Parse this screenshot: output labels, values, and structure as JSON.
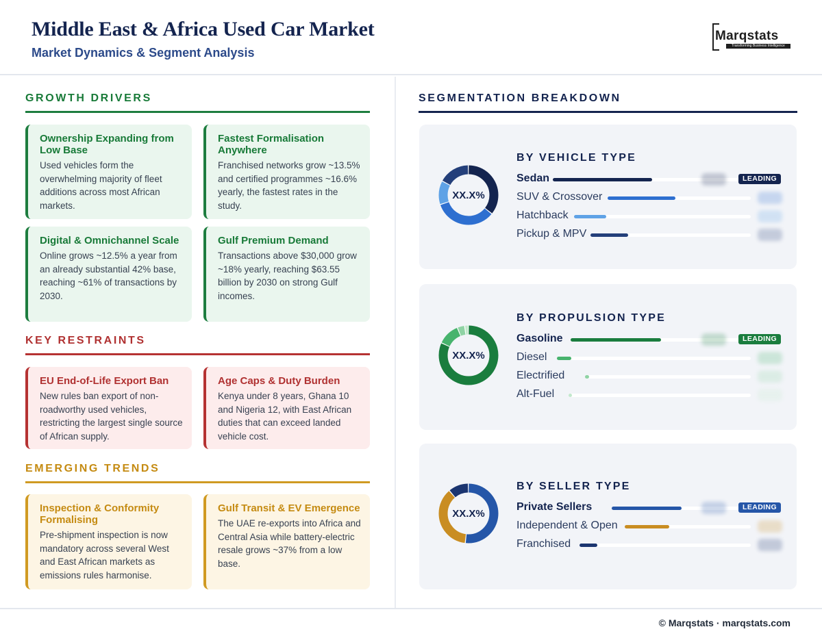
{
  "header": {
    "title": "Middle East & Africa Used Car Market",
    "subtitle": "Market Dynamics & Segment Analysis",
    "logo_text": "Marqstats",
    "logo_tagline": "Transforming Business Intelligence"
  },
  "drivers": {
    "heading": "GROWTH DRIVERS",
    "cards": [
      {
        "title": "Ownership Expanding from Low Base",
        "body": "Used vehicles form the overwhelming majority of fleet additions across most African markets."
      },
      {
        "title": "Fastest Formalisation Anywhere",
        "body": "Franchised networks grow ~13.5% and certified programmes ~16.6% yearly, the fastest rates in the study."
      },
      {
        "title": "Digital & Omnichannel Scale",
        "body": "Online grows ~12.5% a year from an already substantial 42% base, reaching ~61% of transactions by 2030."
      },
      {
        "title": "Gulf Premium Demand",
        "body": "Transactions above $30,000 grow ~18% yearly, reaching $63.55 billion by 2030 on strong Gulf incomes."
      }
    ]
  },
  "restraints": {
    "heading": "KEY RESTRAINTS",
    "cards": [
      {
        "title": "EU End-of-Life Export Ban",
        "body": "New rules ban export of non-roadworthy used vehicles, restricting the largest single source of African supply."
      },
      {
        "title": "Age Caps & Duty Burden",
        "body": "Kenya under 8 years, Ghana 10 and Nigeria 12, with East African duties that can exceed landed vehicle cost."
      }
    ]
  },
  "trends": {
    "heading": "EMERGING TRENDS",
    "cards": [
      {
        "title": "Inspection & Conformity Formalising",
        "body": "Pre-shipment inspection is now mandatory across several West and East African markets as emissions rules harmonise."
      },
      {
        "title": "Gulf Transit & EV Emergence",
        "body": "The UAE re-exports into Africa and Central Asia while battery-electric resale grows ~37% from a low base."
      }
    ]
  },
  "segmentation": {
    "heading": "SEGMENTATION BREAKDOWN",
    "leading_label": "LEADING",
    "panels": [
      {
        "title": "BY VEHICLE TYPE",
        "donut_label": "XX.X%",
        "rows": [
          {
            "name": "Sedan",
            "share": 0.36,
            "color": "#14244f",
            "leading": true
          },
          {
            "name": "SUV & Crossover",
            "share": 0.34,
            "color": "#2e6fd0",
            "leading": false
          },
          {
            "name": "Hatchback",
            "share": 0.13,
            "color": "#5fa2e6",
            "leading": false
          },
          {
            "name": "Pickup & MPV",
            "share": 0.17,
            "color": "#243f7a",
            "leading": false
          }
        ]
      },
      {
        "title": "BY PROPULSION TYPE",
        "donut_label": "XX.X%",
        "rows": [
          {
            "name": "Gasoline",
            "share": 0.82,
            "color": "#1a7d3e",
            "leading": true
          },
          {
            "name": "Diesel",
            "share": 0.12,
            "color": "#47b36d",
            "leading": false
          },
          {
            "name": "Electrified",
            "share": 0.04,
            "color": "#8fd3a4",
            "leading": false
          },
          {
            "name": "Alt-Fuel",
            "share": 0.02,
            "color": "#c2e8cc",
            "leading": false
          }
        ]
      },
      {
        "title": "BY SELLER TYPE",
        "donut_label": "XX.X%",
        "rows": [
          {
            "name": "Private Sellers",
            "share": 0.52,
            "color": "#2556a8",
            "leading": true
          },
          {
            "name": "Independent & Open",
            "share": 0.37,
            "color": "#c98d22",
            "leading": false
          },
          {
            "name": "Franchised",
            "share": 0.11,
            "color": "#1b3570",
            "leading": false
          }
        ]
      }
    ]
  },
  "footer": {
    "text": "© Marqstats · marqstats.com"
  }
}
